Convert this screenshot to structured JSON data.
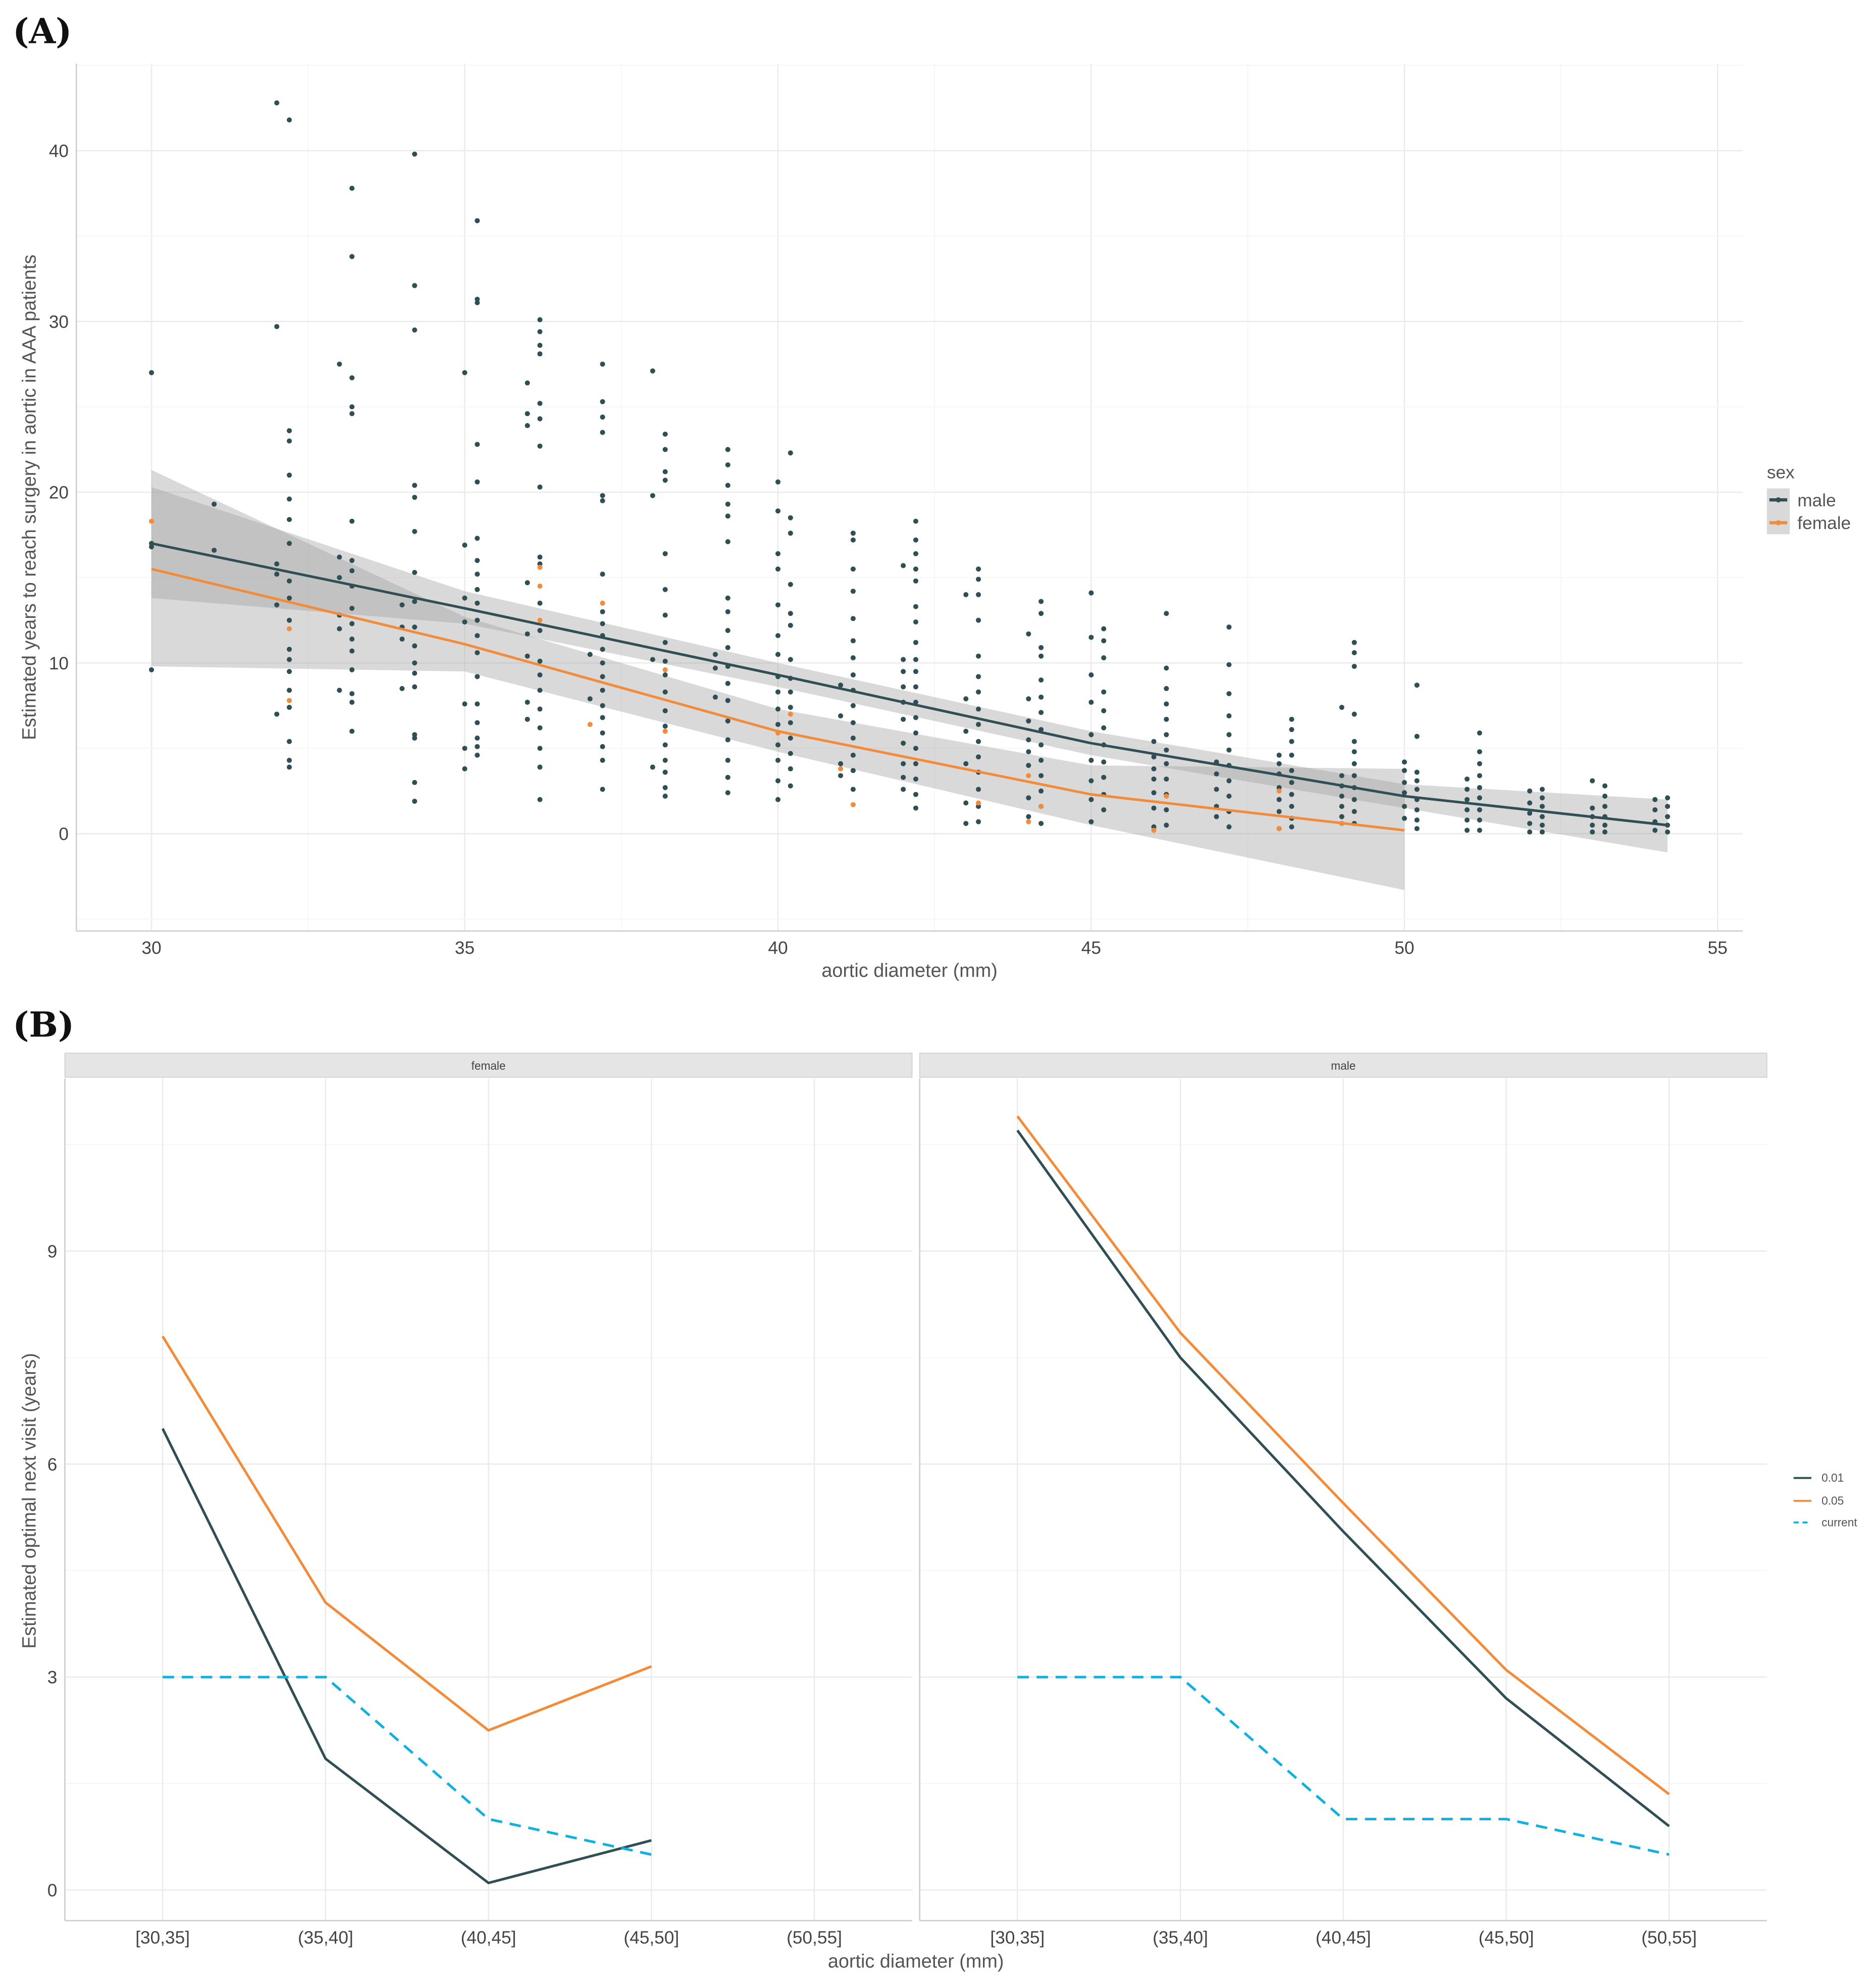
{
  "panels": {
    "a_label": "(A)",
    "b_label": "(B)"
  },
  "colors": {
    "male": "#2f4f55",
    "female": "#f28c3a",
    "current": "#11b0e0",
    "ribbon": "#a0a0a0"
  },
  "chart_data": [
    {
      "type": "scatter",
      "title": "",
      "xlabel": "aortic diameter (mm)",
      "ylabel": "Estimated years to reach surgery in aortic in AAA patients",
      "xlim": [
        28.8,
        55.4
      ],
      "ylim": [
        -5.7,
        45.1
      ],
      "xticks": [
        30,
        35,
        40,
        45,
        50,
        55
      ],
      "yticks": [
        0,
        10,
        20,
        30,
        40
      ],
      "grid": true,
      "legend": {
        "title": "sex",
        "placement": "right",
        "entries": [
          "male",
          "female"
        ]
      },
      "smooth": {
        "male": {
          "x": [
            30,
            35,
            40,
            45,
            50,
            54.2
          ],
          "y": [
            17,
            13.2,
            9.3,
            5.3,
            2.2,
            0.5
          ],
          "lower": [
            13.8,
            12.3,
            8.6,
            4.6,
            1.5,
            -1.1
          ],
          "upper": [
            20.3,
            14.2,
            10.0,
            6.0,
            2.9,
            2.0
          ]
        },
        "female": {
          "x": [
            30,
            35,
            40,
            45,
            50
          ],
          "y": [
            15.5,
            11.1,
            6.0,
            2.3,
            0.2
          ],
          "lower": [
            9.8,
            9.5,
            4.8,
            0.5,
            -3.3
          ],
          "upper": [
            21.3,
            12.7,
            7.3,
            4.0,
            3.8
          ]
        }
      },
      "points": {
        "male": [
          [
            30,
            [
              27,
              17,
              16.8,
              9.6
            ]
          ],
          [
            31,
            [
              19.3,
              16.6
            ]
          ],
          [
            32,
            [
              42.8,
              29.7,
              15.8,
              15.2,
              13.4,
              7
            ]
          ],
          [
            32.2,
            [
              41.8,
              23.6,
              23,
              21,
              19.6,
              18.4,
              17,
              14.8,
              13.8,
              12.5,
              10.8,
              10.2,
              9.5,
              8.4,
              7.4,
              5.4,
              4.3,
              3.9
            ]
          ],
          [
            33,
            [
              27.5,
              16.2,
              15,
              12.8,
              12,
              8.4
            ]
          ],
          [
            33.2,
            [
              37.8,
              33.8,
              26.7,
              25,
              24.6,
              18.3,
              16,
              15.4,
              14.5,
              13.2,
              12.3,
              11.4,
              10.7,
              9.6,
              8.2,
              7.7,
              6
            ]
          ],
          [
            34,
            [
              13.4,
              12.1,
              11.4,
              8.5
            ]
          ],
          [
            34.2,
            [
              39.8,
              32.1,
              29.5,
              20.4,
              19.7,
              17.7,
              15.3,
              13.6,
              12.1,
              11,
              10,
              9.4,
              8.6,
              5.8,
              5.6,
              3,
              1.9
            ]
          ],
          [
            35,
            [
              27,
              16.9,
              13.8,
              12.4,
              7.6,
              5,
              3.8
            ]
          ],
          [
            35.2,
            [
              35.9,
              31.3,
              31.1,
              22.8,
              20.6,
              17.3,
              16,
              15.2,
              14.3,
              13.5,
              12.5,
              11.6,
              10.6,
              9.2,
              7.6,
              6.5,
              5.6,
              5.1,
              4.6
            ]
          ],
          [
            36,
            [
              26.4,
              24.6,
              23.9,
              14.7,
              11.7,
              10.4,
              7.7,
              6.7
            ]
          ],
          [
            36.2,
            [
              30.1,
              29.4,
              28.6,
              28.1,
              25.2,
              24.3,
              22.7,
              20.3,
              16.2,
              15.8,
              13.5,
              11.9,
              10.1,
              9.3,
              8.4,
              7.3,
              6.2,
              5,
              3.9,
              2
            ]
          ],
          [
            37,
            [
              10.5,
              7.9
            ]
          ],
          [
            37.2,
            [
              27.5,
              25.3,
              24.4,
              23.5,
              19.8,
              19.5,
              15.2,
              13,
              12.3,
              11.6,
              10.8,
              10,
              9.2,
              8.4,
              7.5,
              6.8,
              5.9,
              5.1,
              4.3,
              2.6
            ]
          ],
          [
            38,
            [
              27.1,
              19.8,
              10.2,
              3.9
            ]
          ],
          [
            38.2,
            [
              23.4,
              22.5,
              21.2,
              20.7,
              16.4,
              14.3,
              12.8,
              11.2,
              10.1,
              9.3,
              8.3,
              7.2,
              6.3,
              5.2,
              4.3,
              3.6,
              2.7,
              2.2
            ]
          ],
          [
            39,
            [
              10.5,
              9.7,
              8
            ]
          ],
          [
            39.2,
            [
              22.5,
              21.6,
              20.4,
              19.3,
              18.6,
              17.1,
              13.8,
              13,
              11.9,
              10.9,
              9.8,
              8.8,
              7.8,
              6.6,
              5.5,
              4.3,
              3.3,
              2.4
            ]
          ],
          [
            40,
            [
              20.6,
              18.9,
              16.4,
              15.5,
              13.4,
              11.6,
              10.5,
              9.2,
              8.3,
              7.3,
              6.4,
              5.2,
              4.3,
              3.1,
              2
            ]
          ],
          [
            40.2,
            [
              22.3,
              18.5,
              17.6,
              14.6,
              12.9,
              12.2,
              10.2,
              9.1,
              8.3,
              7.4,
              6.5,
              5.6,
              4.7,
              3.8,
              2.8
            ]
          ],
          [
            41,
            [
              8.7,
              6.9,
              4.1,
              3.4
            ]
          ],
          [
            41.2,
            [
              17.6,
              17.2,
              15.5,
              14.2,
              12.6,
              11.3,
              10.3,
              9.3,
              8.4,
              7.5,
              6.5,
              5.6,
              4.6,
              3.7,
              2.6
            ]
          ],
          [
            42,
            [
              15.7,
              10.2,
              9.5,
              8.6,
              7.7,
              6.7,
              5.3,
              4.1,
              3.3,
              2.6
            ]
          ],
          [
            42.2,
            [
              18.3,
              17.2,
              16.4,
              15.5,
              14.8,
              13.3,
              12.4,
              11.2,
              10.2,
              9.5,
              8.6,
              7.7,
              6.8,
              5.9,
              5,
              4.1,
              3.2,
              2.3,
              1.5
            ]
          ],
          [
            43,
            [
              14,
              7.9,
              6,
              4.1,
              1.8,
              0.6
            ]
          ],
          [
            43.2,
            [
              15.5,
              14.9,
              14,
              12.5,
              10.4,
              9.2,
              8.3,
              7.3,
              6.4,
              5.4,
              4.5,
              3.6,
              2.6,
              1.6,
              0.7
            ]
          ],
          [
            44,
            [
              11.7,
              7.9,
              6.6,
              5.5,
              4.8,
              4,
              2.1,
              1
            ]
          ],
          [
            44.2,
            [
              13.6,
              12.9,
              10.9,
              10.4,
              9,
              8,
              7.1,
              6.1,
              5.2,
              4.3,
              3.4,
              2.5,
              1.6,
              0.6
            ]
          ],
          [
            45,
            [
              14.1,
              11.5,
              9.3,
              7.7,
              5.8,
              4.3,
              3.1,
              2,
              0.7
            ]
          ],
          [
            45.2,
            [
              12,
              11.3,
              10.3,
              8.3,
              7.2,
              6.2,
              5.2,
              4.2,
              3.3,
              2.3,
              1.4
            ]
          ],
          [
            46,
            [
              5.4,
              4.5,
              3.8,
              3.2,
              2.4,
              1.5,
              0.4
            ]
          ],
          [
            46.2,
            [
              12.9,
              9.7,
              8.5,
              7.6,
              6.7,
              5.8,
              4.9,
              4.1,
              3.2,
              2.3,
              1.4,
              0.5
            ]
          ],
          [
            47,
            [
              4.2,
              3.5,
              2.6,
              1.6,
              1
            ]
          ],
          [
            47.2,
            [
              12.1,
              9.9,
              8.2,
              6.9,
              5.8,
              4.9,
              4,
              3.1,
              2.2,
              1.3,
              0.4
            ]
          ],
          [
            48,
            [
              4.6,
              4.1,
              3.5,
              2.7,
              2,
              1.3,
              0.3
            ]
          ],
          [
            48.2,
            [
              6.7,
              6.1,
              5.4,
              4.6,
              3.7,
              3,
              2.3,
              1.6,
              0.9,
              0.4
            ]
          ],
          [
            49,
            [
              7.4,
              3.4,
              2.8,
              2.2,
              1.6,
              1
            ]
          ],
          [
            49.2,
            [
              11.2,
              10.6,
              9.8,
              7,
              5.4,
              4.8,
              4.1,
              3.4,
              2.7,
              2,
              1.3,
              0.6
            ]
          ],
          [
            50,
            [
              4.2,
              3.7,
              3,
              2.4,
              1.6,
              0.9
            ]
          ],
          [
            50.2,
            [
              8.7,
              5.7,
              3.6,
              3.1,
              2.6,
              2,
              1.4,
              0.8,
              0.3
            ]
          ],
          [
            51,
            [
              3.2,
              2.6,
              2,
              1.4,
              0.8,
              0.2
            ]
          ],
          [
            51.2,
            [
              5.9,
              4.8,
              4.1,
              3.4,
              2.7,
              2.1,
              1.4,
              0.8,
              0.2
            ]
          ],
          [
            52,
            [
              2.5,
              1.8,
              1.2,
              0.6,
              0.1
            ]
          ],
          [
            52.2,
            [
              2.6,
              2.1,
              1.6,
              1,
              0.5,
              0.1
            ]
          ],
          [
            53,
            [
              3.1,
              1.5,
              1,
              0.5,
              0.1
            ]
          ],
          [
            53.2,
            [
              2.8,
              2.2,
              1.6,
              1,
              0.5,
              0.1
            ]
          ],
          [
            54,
            [
              2,
              1.4,
              0.7,
              0.2
            ]
          ],
          [
            54.2,
            [
              2.1,
              1.6,
              1,
              0.5,
              0.1
            ]
          ]
        ],
        "female": [
          [
            30,
            [
              18.3
            ]
          ],
          [
            32.2,
            [
              12,
              7.8
            ]
          ],
          [
            36.2,
            [
              15.6,
              14.5,
              12.5
            ]
          ],
          [
            37,
            [
              6.4
            ]
          ],
          [
            37.2,
            [
              13.5
            ]
          ],
          [
            38.2,
            [
              9.6,
              6
            ]
          ],
          [
            40,
            [
              5.9
            ]
          ],
          [
            40.2,
            [
              7
            ]
          ],
          [
            41,
            [
              3.8
            ]
          ],
          [
            41.2,
            [
              1.7
            ]
          ],
          [
            43.2,
            [
              1.8
            ]
          ],
          [
            44,
            [
              3.4,
              0.7
            ]
          ],
          [
            44.2,
            [
              1.6
            ]
          ],
          [
            46,
            [
              0.2
            ]
          ],
          [
            46.2,
            [
              2.2
            ]
          ],
          [
            48,
            [
              2.5,
              0.3
            ]
          ],
          [
            49,
            [
              0.6
            ]
          ]
        ]
      }
    },
    {
      "type": "line",
      "title": "",
      "xlabel": "aortic diameter (mm)",
      "ylabel": "Estimated optimal next visit (years)",
      "categories": [
        "[30,35]",
        "(35,40]",
        "(40,45]",
        "(45,50]",
        "(50,55]"
      ],
      "ylim": [
        -0.43,
        11.43
      ],
      "yticks": [
        0,
        3,
        6,
        9
      ],
      "grid": true,
      "legend": {
        "placement": "right",
        "entries": [
          "0.01",
          "0.05",
          "current"
        ]
      },
      "facets": [
        {
          "name": "female",
          "series": [
            {
              "name": "0.01",
              "values": [
                6.5,
                1.85,
                0.1,
                0.7,
                null
              ]
            },
            {
              "name": "0.05",
              "values": [
                7.8,
                4.05,
                2.25,
                3.15,
                null
              ]
            },
            {
              "name": "current",
              "values": [
                3,
                3,
                1,
                0.5,
                null
              ]
            }
          ]
        },
        {
          "name": "male",
          "series": [
            {
              "name": "0.01",
              "values": [
                10.7,
                7.5,
                5.05,
                2.7,
                0.9
              ]
            },
            {
              "name": "0.05",
              "values": [
                10.9,
                7.85,
                5.45,
                3.1,
                1.35
              ]
            },
            {
              "name": "current",
              "values": [
                3,
                3,
                1,
                1,
                0.5
              ]
            }
          ]
        }
      ]
    }
  ]
}
